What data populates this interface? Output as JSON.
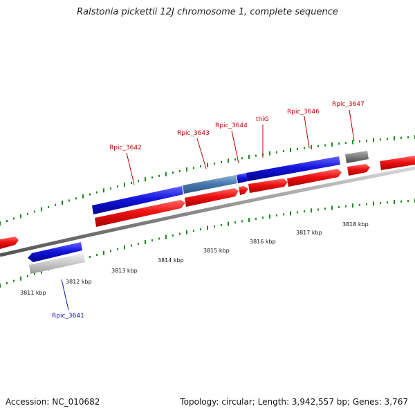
{
  "title": "Ralstonia pickettii 12J chromosome 1, complete sequence",
  "footer": {
    "accession": "Accession: NC_010682",
    "summary": "Topology: circular; Length: 3,942,557 bp; Genes: 3,767"
  },
  "scale_labels": [
    "3811 kbp",
    "3812 kbp",
    "3813 kbp",
    "3814 kbp",
    "3815 kbp",
    "3816 kbp",
    "3817 kbp",
    "3818 kbp"
  ],
  "gene_labels": [
    {
      "name": "Rpic_3641",
      "color": "#1010b0"
    },
    {
      "name": "Rpic_3642",
      "color": "#c00000"
    },
    {
      "name": "Rpic_3643",
      "color": "#c00000"
    },
    {
      "name": "Rpic_3644",
      "color": "#c00000"
    },
    {
      "name": "thiG",
      "color": "#c00000"
    },
    {
      "name": "Rpic_3646",
      "color": "#c00000"
    },
    {
      "name": "Rpic_3647",
      "color": "#c00000"
    }
  ],
  "colors": {
    "cds_forward": "#ee1111",
    "gene_blue": "#1414dd",
    "gene_steel": "#4a7bb0",
    "gene_gray": "#808080",
    "gene_light": "#c8c8c8",
    "backbone": "#888888",
    "tick_green": "#1c8c1c"
  }
}
